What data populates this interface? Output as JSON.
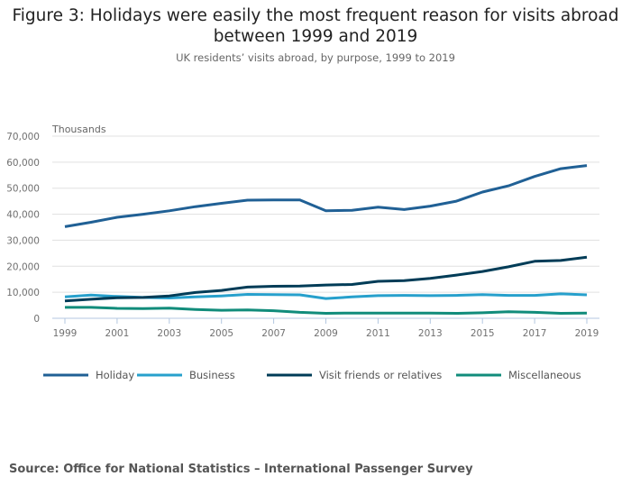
{
  "chart_data": {
    "type": "line",
    "title": "Figure 3: Holidays were easily the most frequent reason for visits abroad between 1999 and 2019",
    "subtitle": "UK residents’ visits abroad, by purpose, 1999 to 2019",
    "ylabel": "Thousands",
    "xlabel": "",
    "ylim": [
      0,
      70000
    ],
    "yticks": [
      "0",
      "10,000",
      "20,000",
      "30,000",
      "40,000",
      "50,000",
      "60,000",
      "70,000"
    ],
    "ytick_values": [
      0,
      10000,
      20000,
      30000,
      40000,
      50000,
      60000,
      70000
    ],
    "xticks": [
      "1999",
      "2001",
      "2003",
      "2005",
      "2007",
      "2009",
      "2011",
      "2013",
      "2015",
      "2017",
      "2019"
    ],
    "x": [
      1999,
      2000,
      2001,
      2002,
      2003,
      2004,
      2005,
      2006,
      2007,
      2008,
      2009,
      2010,
      2011,
      2012,
      2013,
      2014,
      2015,
      2016,
      2017,
      2018,
      2019
    ],
    "grid": true,
    "legend_position": "bottom",
    "series": [
      {
        "name": "Holiday",
        "color": "#206095",
        "values": [
          35200,
          36900,
          38800,
          40000,
          41300,
          42900,
          44200,
          45400,
          45500,
          45500,
          41300,
          41500,
          42700,
          41800,
          43100,
          45000,
          48500,
          50900,
          54500,
          57500,
          58700
        ]
      },
      {
        "name": "Business",
        "color": "#27a0cc",
        "values": [
          8200,
          8900,
          8400,
          8000,
          7800,
          8200,
          8600,
          9200,
          9100,
          9000,
          7600,
          8200,
          8700,
          8800,
          8700,
          8800,
          9100,
          8800,
          8800,
          9400,
          9000
        ]
      },
      {
        "name": "Visit friends or relatives",
        "color": "#003c57",
        "values": [
          6700,
          7300,
          7900,
          8000,
          8600,
          9900,
          10700,
          12000,
          12300,
          12400,
          12800,
          13000,
          14200,
          14500,
          15300,
          16600,
          18000,
          19800,
          21900,
          22200,
          23500
        ]
      },
      {
        "name": "Miscellaneous",
        "color": "#118c7b",
        "values": [
          4200,
          4200,
          3800,
          3700,
          3900,
          3400,
          3100,
          3200,
          2900,
          2300,
          1900,
          2000,
          2000,
          2000,
          2000,
          1900,
          2100,
          2500,
          2300,
          1900,
          2000
        ]
      }
    ]
  },
  "source": "Source: Office for National Statistics – International Passenger Survey"
}
